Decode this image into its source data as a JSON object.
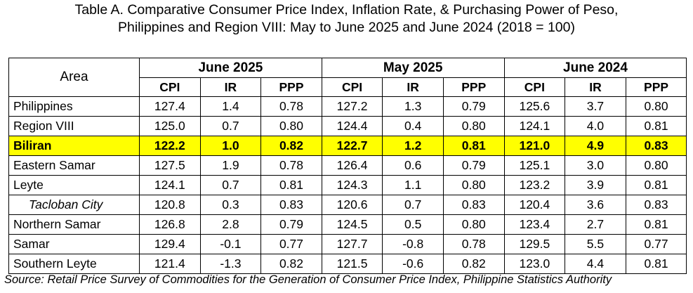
{
  "header": {
    "title": [
      "Table A. Comparative Consumer  Price Index, Inflation Rate, & Purchasing Power of Peso,",
      "Philippines and Region VIII: May to June 2025 and June 2024 (2018 = 100)"
    ]
  },
  "table": {
    "area_label": "Area",
    "groups": [
      "June 2025",
      "May 2025",
      "June 2024"
    ],
    "subcolumns": [
      "CPI",
      "IR",
      "PPP"
    ],
    "rows": [
      [
        "Philippines",
        "127.4",
        "1.4",
        "0.78",
        "127.2",
        "1.3",
        "0.79",
        "125.6",
        "3.7",
        "0.80"
      ],
      [
        "Region VIII",
        "125.0",
        "0.7",
        "0.80",
        "124.4",
        "0.4",
        "0.80",
        "124.1",
        "4.0",
        "0.81"
      ],
      [
        "Biliran",
        "122.2",
        "1.0",
        "0.82",
        "122.7",
        "1.2",
        "0.81",
        "121.0",
        "4.9",
        "0.83"
      ],
      [
        "Eastern Samar",
        "127.5",
        "1.9",
        "0.78",
        "126.4",
        "0.6",
        "0.79",
        "125.1",
        "3.0",
        "0.80"
      ],
      [
        "Leyte",
        "124.1",
        "0.7",
        "0.81",
        "124.3",
        "1.1",
        "0.80",
        "123.2",
        "3.9",
        "0.81"
      ],
      [
        "Tacloban City",
        "120.8",
        "0.3",
        "0.83",
        "120.6",
        "0.7",
        "0.83",
        "120.4",
        "3.6",
        "0.83"
      ],
      [
        "Northern Samar",
        "126.8",
        "2.8",
        "0.79",
        "124.5",
        "0.5",
        "0.80",
        "123.4",
        "2.7",
        "0.81"
      ],
      [
        "Samar",
        "129.4",
        "-0.1",
        "0.77",
        "127.7",
        "-0.8",
        "0.78",
        "129.5",
        "5.5",
        "0.77"
      ],
      [
        "Southern Leyte",
        "121.4",
        "-1.3",
        "0.82",
        "121.5",
        "-0.6",
        "0.82",
        "123.0",
        "4.4",
        "0.81"
      ]
    ]
  },
  "source": "Source: Retail Price Survey of Commodities for the Generation of Consumer Price Index, Philippine Statistics Authority"
}
